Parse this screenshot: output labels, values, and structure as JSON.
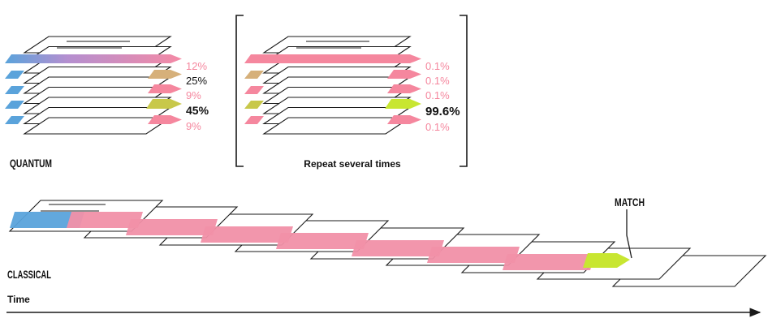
{
  "colors": {
    "blue": "#5aa3db",
    "pink": "#f5879e",
    "pink_band": "#f190a8",
    "tan": "#d6b07a",
    "olive": "#c8c84a",
    "lime": "#c8e631",
    "line": "#1a1a1a"
  },
  "quantum": {
    "label": "QUANTUM",
    "outputs": [
      {
        "text": "12%",
        "color": "pink"
      },
      {
        "text": "25%",
        "color": "dark"
      },
      {
        "text": "9%",
        "color": "pink"
      },
      {
        "text": "45%",
        "color": "dark"
      },
      {
        "text": "9%",
        "color": "pink"
      }
    ]
  },
  "repeat": {
    "caption": "Repeat several times",
    "outputs": [
      {
        "text": "0.1%",
        "color": "pink"
      },
      {
        "text": "0.1%",
        "color": "pink"
      },
      {
        "text": "0.1%",
        "color": "pink"
      },
      {
        "text": "99.6%",
        "color": "dark"
      },
      {
        "text": "0.1%",
        "color": "pink"
      }
    ]
  },
  "classical": {
    "label": "CLASSICAL",
    "match_label": "MATCH"
  },
  "time": {
    "label": "Time"
  }
}
